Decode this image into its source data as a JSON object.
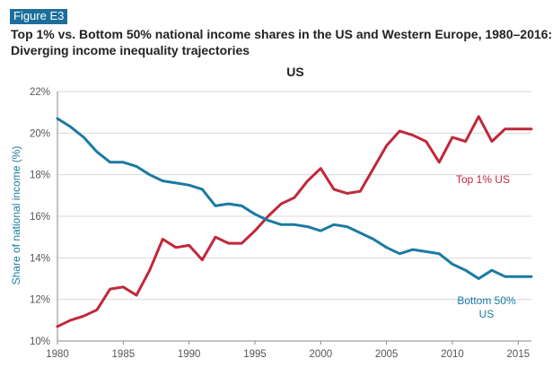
{
  "figure_label": "Figure E3",
  "title_line1": "Top 1% vs. Bottom 50% national income shares in the US and Western Europe, 1980–2016:",
  "title_line2": "Diverging income inequality trajectories",
  "chart_data": {
    "type": "line",
    "title": "US",
    "ylabel": "Share of national income (%)",
    "xlabel": "",
    "xlim": [
      1980,
      2016
    ],
    "ylim": [
      10,
      22
    ],
    "x_ticks": [
      1980,
      1985,
      1990,
      1995,
      2000,
      2005,
      2010,
      2015
    ],
    "y_ticks": [
      {
        "value": 10,
        "label": "10%"
      },
      {
        "value": 12,
        "label": "12%"
      },
      {
        "value": 14,
        "label": "14%"
      },
      {
        "value": 16,
        "label": "16%"
      },
      {
        "value": 18,
        "label": "18%"
      },
      {
        "value": 20,
        "label": "20%"
      },
      {
        "value": 22,
        "label": "22%"
      }
    ],
    "grid": true,
    "x": [
      1980,
      1981,
      1982,
      1983,
      1984,
      1985,
      1986,
      1987,
      1988,
      1989,
      1990,
      1991,
      1992,
      1993,
      1994,
      1995,
      1996,
      1997,
      1998,
      1999,
      2000,
      2001,
      2002,
      2003,
      2004,
      2005,
      2006,
      2007,
      2008,
      2009,
      2010,
      2011,
      2012,
      2013,
      2014,
      2015,
      2016
    ],
    "series": [
      {
        "name": "Top 1% US",
        "color": "#c0283a",
        "values": [
          10.7,
          11.0,
          11.2,
          11.5,
          12.5,
          12.6,
          12.2,
          13.4,
          14.9,
          14.5,
          14.6,
          13.9,
          15.0,
          14.7,
          14.7,
          15.3,
          16.0,
          16.6,
          16.9,
          17.7,
          18.3,
          17.3,
          17.1,
          17.2,
          18.3,
          19.4,
          20.1,
          19.9,
          19.6,
          18.6,
          19.8,
          19.6,
          20.8,
          19.6,
          20.2,
          20.2,
          20.2
        ],
        "label_lines": [
          "Top 1% US"
        ]
      },
      {
        "name": "Bottom 50% US",
        "color": "#1a7aa3",
        "values": [
          20.7,
          20.3,
          19.8,
          19.1,
          18.6,
          18.6,
          18.4,
          18.0,
          17.7,
          17.6,
          17.5,
          17.3,
          16.5,
          16.6,
          16.5,
          16.1,
          15.8,
          15.6,
          15.6,
          15.5,
          15.3,
          15.6,
          15.5,
          15.2,
          14.9,
          14.5,
          14.2,
          14.4,
          14.3,
          14.2,
          13.7,
          13.4,
          13.0,
          13.4,
          13.1,
          13.1,
          13.1
        ],
        "label_lines": [
          "Bottom 50%",
          "US"
        ]
      }
    ]
  }
}
